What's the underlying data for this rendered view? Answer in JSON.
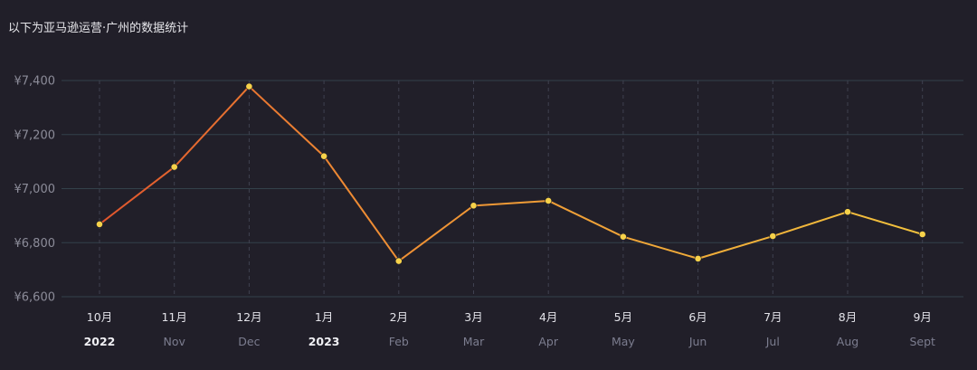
{
  "title": "以下为亚马逊运营·广州的数据统计",
  "colors": {
    "background": "#211f29",
    "grid": "#33414a",
    "vgrid": "#3f4150",
    "line_start": "#e0552d",
    "line_mid": "#ee8a33",
    "line_end": "#f2c23d",
    "point": "#f7d24a"
  },
  "chart_data": {
    "type": "line",
    "categories": [
      "10月",
      "11月",
      "12月",
      "1月",
      "2月",
      "3月",
      "4月",
      "5月",
      "6月",
      "7月",
      "8月",
      "9月"
    ],
    "category_sublabels": [
      "2022",
      "Nov",
      "Dec",
      "2023",
      "Feb",
      "Mar",
      "Apr",
      "May",
      "Jun",
      "Jul",
      "Aug",
      "Sept"
    ],
    "series": [
      {
        "values": [
          6868,
          7080,
          7378,
          7120,
          6732,
          6937,
          6955,
          6822,
          6741,
          6824,
          6914,
          6831
        ]
      }
    ],
    "ylim": [
      6600,
      7400
    ],
    "yticks": [
      6600,
      6800,
      7000,
      7200,
      7400
    ],
    "ytick_labels": [
      "¥6,600",
      "¥6,800",
      "¥7,000",
      "¥7,200",
      "¥7,400"
    ],
    "grid": true,
    "legend": "none",
    "title": "以下为亚马逊运营·广州的数据统计",
    "xlabel": "",
    "ylabel": ""
  }
}
